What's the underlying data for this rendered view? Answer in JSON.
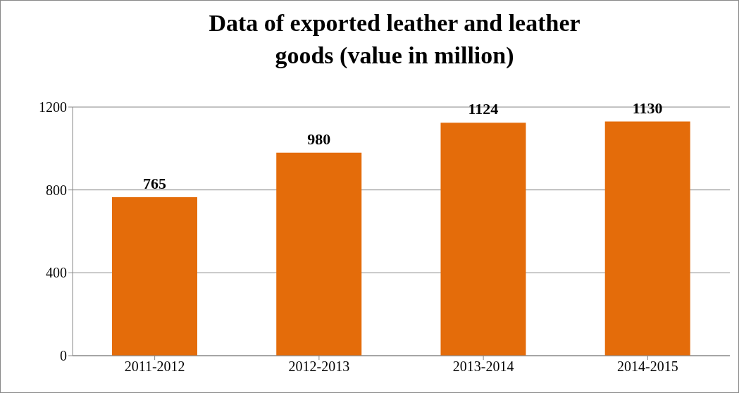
{
  "chart_data": {
    "type": "bar",
    "title": "Data of exported leather and leather goods (value in million)",
    "categories": [
      "2011-2012",
      "2012-2013",
      "2013-2014",
      "2014-2015"
    ],
    "values": [
      765,
      980,
      1124,
      1130
    ],
    "color": "#e46c0a",
    "ylim": [
      0,
      1200
    ],
    "yticks": [
      0,
      400,
      800,
      1200
    ],
    "grid": "y",
    "data_labels": true
  }
}
